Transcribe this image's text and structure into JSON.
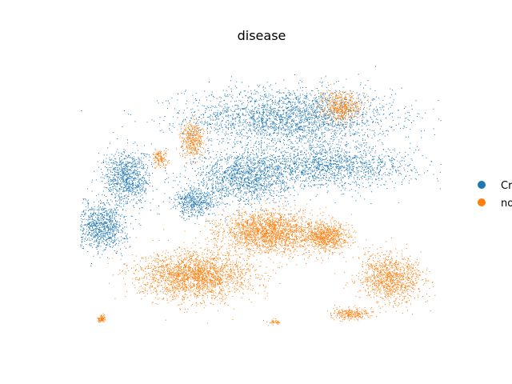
{
  "chart_data": {
    "type": "scatter",
    "title": "disease",
    "xlabel": "",
    "ylabel": "",
    "grid": false,
    "axes_visible": false,
    "legend": {
      "placement": "right",
      "entries": [
        {
          "label": "Cr",
          "color": "#1f77b4"
        },
        {
          "label": "no",
          "color": "#ff7f0e"
        }
      ]
    },
    "series": [
      {
        "color": "#1f77b4",
        "clusters": [
          {
            "cx": 0.58,
            "cy": 0.78,
            "sx": 0.26,
            "sy": 0.1,
            "n": 2600
          },
          {
            "cx": 0.68,
            "cy": 0.6,
            "sx": 0.22,
            "sy": 0.07,
            "n": 1600
          },
          {
            "cx": 0.45,
            "cy": 0.56,
            "sx": 0.12,
            "sy": 0.09,
            "n": 1300
          },
          {
            "cx": 0.13,
            "cy": 0.56,
            "sx": 0.06,
            "sy": 0.09,
            "n": 900
          },
          {
            "cx": 0.06,
            "cy": 0.38,
            "sx": 0.06,
            "sy": 0.08,
            "n": 900
          },
          {
            "cx": 0.32,
            "cy": 0.47,
            "sx": 0.06,
            "sy": 0.05,
            "n": 500
          }
        ]
      },
      {
        "color": "#ff7f0e",
        "clusters": [
          {
            "cx": 0.32,
            "cy": 0.2,
            "sx": 0.14,
            "sy": 0.08,
            "n": 2300
          },
          {
            "cx": 0.52,
            "cy": 0.36,
            "sx": 0.12,
            "sy": 0.07,
            "n": 2000
          },
          {
            "cx": 0.68,
            "cy": 0.34,
            "sx": 0.06,
            "sy": 0.05,
            "n": 800
          },
          {
            "cx": 0.86,
            "cy": 0.19,
            "sx": 0.08,
            "sy": 0.08,
            "n": 1100
          },
          {
            "cx": 0.72,
            "cy": 0.82,
            "sx": 0.05,
            "sy": 0.05,
            "n": 500
          },
          {
            "cx": 0.31,
            "cy": 0.7,
            "sx": 0.03,
            "sy": 0.06,
            "n": 400
          },
          {
            "cx": 0.22,
            "cy": 0.63,
            "sx": 0.02,
            "sy": 0.03,
            "n": 150
          },
          {
            "cx": 0.06,
            "cy": 0.04,
            "sx": 0.01,
            "sy": 0.012,
            "n": 80
          },
          {
            "cx": 0.75,
            "cy": 0.06,
            "sx": 0.05,
            "sy": 0.02,
            "n": 250
          },
          {
            "cx": 0.54,
            "cy": 0.03,
            "sx": 0.02,
            "sy": 0.01,
            "n": 40
          }
        ]
      }
    ]
  }
}
